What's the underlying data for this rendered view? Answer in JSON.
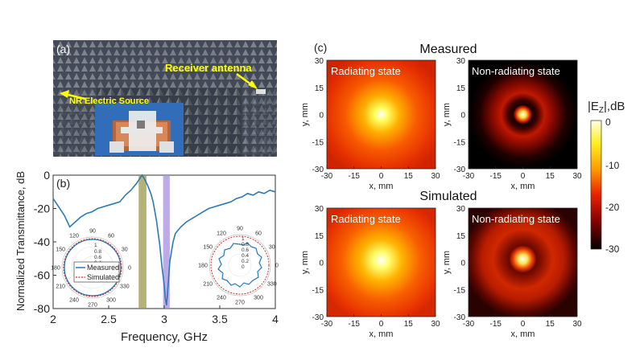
{
  "panel_a": {
    "label": "(a)",
    "receiver_label": "Receiver antenna",
    "source_label": "NR Electric Source"
  },
  "panel_b": {
    "label": "(b)",
    "xlabel": "Frequency, GHz",
    "ylabel": "Normalized Transmittance, dB",
    "xticks": [
      "2",
      "2.5",
      "3",
      "3.5",
      "4"
    ],
    "yticks": [
      "0",
      "-20",
      "-40",
      "-60",
      "-80"
    ],
    "legend_measured": "Measured",
    "legend_simulated": "Simulated",
    "polar_left": {
      "angles": [
        "90",
        "60",
        "30",
        "0",
        "330",
        "300",
        "270",
        "240",
        "210",
        "180",
        "150",
        "120"
      ],
      "radial": [
        "1",
        "0.8",
        "0.6",
        "0.4"
      ]
    },
    "polar_right": {
      "angles": [
        "90",
        "60",
        "30",
        "0",
        "330",
        "300",
        "270",
        "240",
        "210",
        "180",
        "150",
        "120"
      ],
      "radial": [
        "1",
        "0.8",
        "0.6",
        "0.4",
        "0.2",
        "0"
      ]
    }
  },
  "panel_c": {
    "label": "(c)",
    "measured_title": "Measured",
    "simulated_title": "Simulated",
    "radiating_label": "Radiating state",
    "nonradiating_label": "Non-radiating state",
    "xlabel": "x, mm",
    "ylabel": "y, mm",
    "ticks": [
      "30",
      "15",
      "0",
      "-15",
      "-30"
    ],
    "xticks": [
      "-30",
      "-15",
      "0",
      "15",
      "30"
    ],
    "colorbar_title": "|E",
    "colorbar_sub": "Z",
    "colorbar_unit": "|,dB",
    "colorbar_ticks": [
      "0",
      "-10",
      "-20",
      "-30"
    ]
  },
  "colors": {
    "measured_line": "#2a7ab8",
    "simulated_line": "#d62728",
    "highlight_green": "#9a9a4a",
    "highlight_purple": "#a78fe0"
  },
  "chart_data": {
    "type": "line",
    "xlabel": "Frequency, GHz",
    "ylabel": "Normalized Transmittance, dB",
    "xlim": [
      2,
      4
    ],
    "ylim": [
      -80,
      0
    ],
    "highlight_bands": [
      [
        2.77,
        2.84
      ],
      [
        2.99,
        3.05
      ]
    ],
    "series": [
      {
        "name": "Measured",
        "x": [
          2.0,
          2.05,
          2.1,
          2.15,
          2.2,
          2.25,
          2.3,
          2.35,
          2.4,
          2.45,
          2.5,
          2.55,
          2.6,
          2.65,
          2.7,
          2.75,
          2.78,
          2.8,
          2.82,
          2.85,
          2.88,
          2.9,
          2.93,
          2.96,
          2.98,
          3.0,
          3.01,
          3.02,
          3.03,
          3.05,
          3.08,
          3.1,
          3.15,
          3.2,
          3.25,
          3.3,
          3.35,
          3.4,
          3.45,
          3.5,
          3.55,
          3.6,
          3.65,
          3.7,
          3.75,
          3.8,
          3.85,
          3.9,
          3.95,
          4.0
        ],
        "y": [
          -14,
          -19,
          -24,
          -31,
          -28,
          -25,
          -23,
          -22,
          -20,
          -19,
          -18,
          -17,
          -16,
          -12,
          -9,
          -5,
          -2,
          0,
          -2,
          -6,
          -11,
          -16,
          -27,
          -42,
          -55,
          -66,
          -74,
          -78,
          -71,
          -52,
          -40,
          -35,
          -31,
          -28,
          -26,
          -24,
          -22,
          -20,
          -19,
          -18,
          -17,
          -16,
          -14,
          -13,
          -11,
          -12,
          -10,
          -11,
          -9,
          -10
        ]
      }
    ]
  }
}
